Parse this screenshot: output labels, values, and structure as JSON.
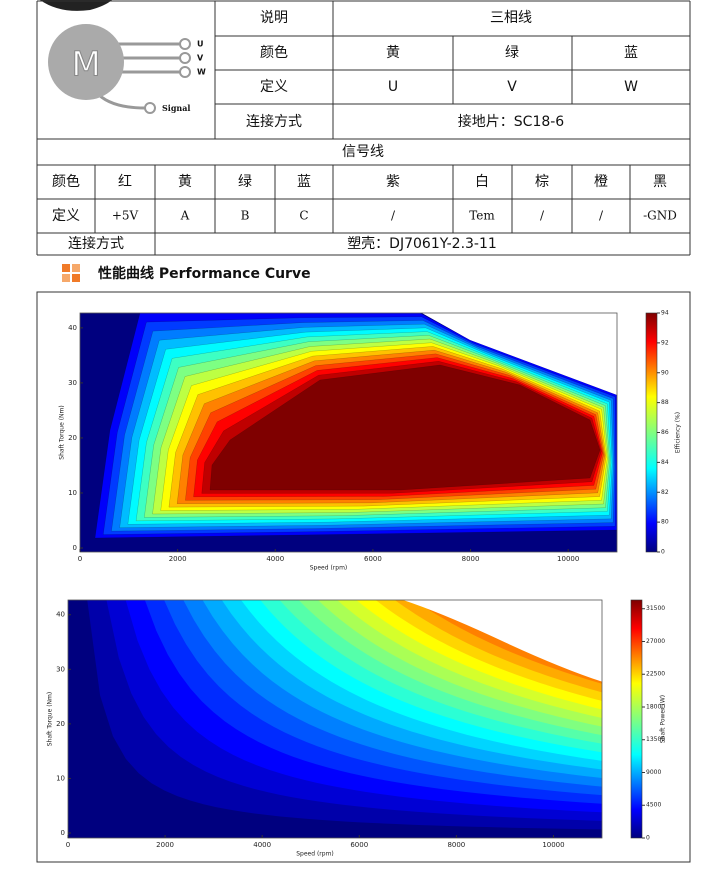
{
  "motor": {
    "letter": "M",
    "pins": [
      "U",
      "V",
      "W"
    ],
    "signal": "Signal"
  },
  "phase_table": {
    "header": [
      "说明",
      "三相线"
    ],
    "rows": [
      [
        "颜色",
        "黄",
        "绿",
        "蓝"
      ],
      [
        "定义",
        "U",
        "V",
        "W"
      ],
      [
        "连接方式",
        "接地片：SC18-6"
      ]
    ]
  },
  "signal_table": {
    "title": "信号线",
    "rows": [
      [
        "颜色",
        "红",
        "黄",
        "绿",
        "蓝",
        "紫",
        "白",
        "棕",
        "橙",
        "黑"
      ],
      [
        "定义",
        "+5V",
        "A",
        "B",
        "C",
        "/",
        "Tem",
        "/",
        "/",
        "-GND"
      ]
    ],
    "connection": [
      "连接方式",
      "塑壳：DJ7061Y-2.3-11"
    ]
  },
  "section": {
    "title": "性能曲线 Performance Curve"
  },
  "charts": [
    {
      "type": "contour",
      "xlabel": "Speed (rpm)",
      "ylabel": "Shaft Torque (Nm)",
      "xlim": [
        0,
        11000
      ],
      "ylim": [
        0,
        42.7
      ],
      "xticks": [
        0,
        2000,
        4000,
        6000,
        8000,
        10000
      ],
      "yticks": [
        0,
        10,
        20,
        30,
        40
      ],
      "colorbar": {
        "label": "Efficiency (%)",
        "ticks": [
          94,
          92,
          90,
          88,
          86,
          84,
          82,
          80,
          0
        ]
      }
    },
    {
      "type": "contour",
      "xlabel": "Speed (rpm)",
      "ylabel": "Shaft Torque (Nm)",
      "xlim": [
        0,
        11000
      ],
      "ylim": [
        0,
        42.7
      ],
      "xticks": [
        0,
        2000,
        4000,
        6000,
        8000,
        10000
      ],
      "yticks": [
        0,
        10,
        20,
        30,
        40
      ],
      "colorbar": {
        "label": "Shaft Power (W)",
        "lim": [
          0,
          32700
        ],
        "ticks": [
          31500,
          27000,
          22500,
          18000,
          13500,
          9000,
          4500,
          0
        ]
      }
    }
  ]
}
